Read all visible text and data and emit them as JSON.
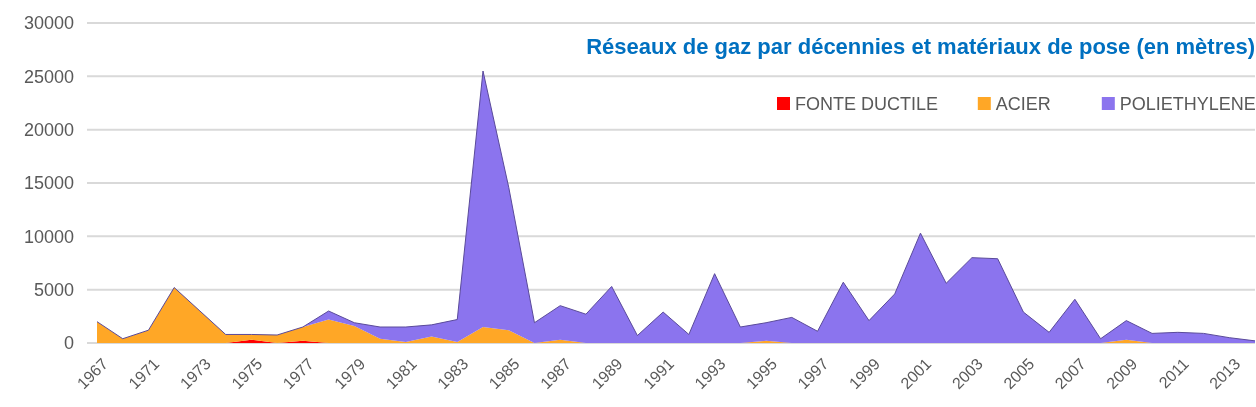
{
  "chart_data": {
    "type": "area",
    "stacked": true,
    "title": "Réseaux de gaz par décennies et matériaux de pose (en mètres)",
    "categories": [
      "1967",
      null,
      "1971",
      null,
      "1973",
      null,
      "1975",
      null,
      "1977",
      null,
      "1979",
      null,
      "1981",
      null,
      "1983",
      null,
      "1985",
      null,
      "1987",
      null,
      "1989",
      null,
      "1991",
      null,
      "1993",
      null,
      "1995",
      null,
      "1997",
      null,
      "1999",
      null,
      "2001",
      null,
      "2003",
      null,
      "2005",
      null,
      "2007",
      null,
      "2009",
      null,
      "2011",
      null,
      "2013",
      null
    ],
    "series": [
      {
        "name": "FONTE DUCTILE",
        "color": "#ff0000",
        "values": [
          0,
          0,
          0,
          0,
          0,
          0,
          300,
          0,
          200,
          0,
          0,
          0,
          0,
          0,
          0,
          0,
          0,
          0,
          0,
          0,
          0,
          0,
          0,
          0,
          0,
          0,
          0,
          0,
          0,
          0,
          0,
          0,
          0,
          0,
          0,
          0,
          0,
          0,
          0,
          0,
          0,
          0,
          0,
          0,
          0,
          0
        ]
      },
      {
        "name": "ACIER",
        "color": "#ffa726",
        "values": [
          2000,
          400,
          1200,
          5200,
          3000,
          800,
          500,
          750,
          1300,
          2200,
          1600,
          400,
          100,
          600,
          100,
          1500,
          1200,
          0,
          300,
          0,
          0,
          0,
          0,
          0,
          0,
          0,
          200,
          0,
          0,
          0,
          0,
          0,
          0,
          0,
          0,
          0,
          0,
          0,
          0,
          0,
          300,
          0,
          0,
          0,
          0,
          0
        ]
      },
      {
        "name": "POLIETHYLENE",
        "color": "#8b74ee",
        "values": [
          0,
          0,
          0,
          0,
          0,
          0,
          0,
          0,
          0,
          800,
          300,
          1100,
          1400,
          1100,
          2100,
          24000,
          13400,
          1900,
          3200,
          2700,
          5300,
          700,
          2900,
          800,
          6500,
          1500,
          1700,
          2400,
          1100,
          5700,
          2100,
          4600,
          10300,
          5600,
          8000,
          7900,
          2900,
          1000,
          4100,
          400,
          1800,
          900,
          1000,
          900,
          500,
          200
        ]
      }
    ],
    "ylim": [
      0,
      30000
    ],
    "yticks": [
      0,
      5000,
      10000,
      15000,
      20000,
      25000,
      30000
    ],
    "grid": "y",
    "legend": "top right"
  }
}
